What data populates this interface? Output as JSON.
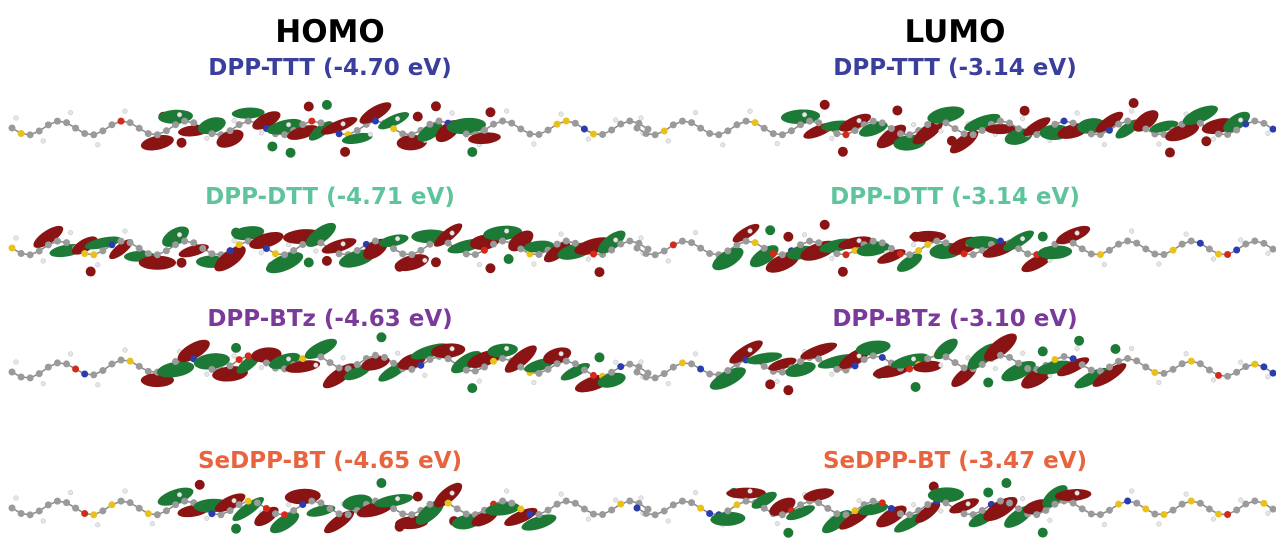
{
  "columns": [
    {
      "title": "HOMO",
      "rows": [
        {
          "label": "DPP-TTT (-4.70 eV)",
          "color": "#3a3f9e"
        },
        {
          "label": "DPP-DTT (-4.71 eV)",
          "color": "#5fc49b"
        },
        {
          "label": "DPP-BTz (-4.63 eV)",
          "color": "#7a3a9a"
        },
        {
          "label": "SeDPP-BT (-4.65 eV)",
          "color": "#e8643e"
        }
      ]
    },
    {
      "title": "LUMO",
      "rows": [
        {
          "label": "DPP-TTT (-3.14 eV)",
          "color": "#3a3f9e"
        },
        {
          "label": "DPP-DTT (-3.14 eV)",
          "color": "#5fc49b"
        },
        {
          "label": "DPP-BTz (-3.10 eV)",
          "color": "#7a3a9a"
        },
        {
          "label": "SeDPP-BT (-3.47 eV)",
          "color": "#e8643e"
        }
      ]
    }
  ]
}
